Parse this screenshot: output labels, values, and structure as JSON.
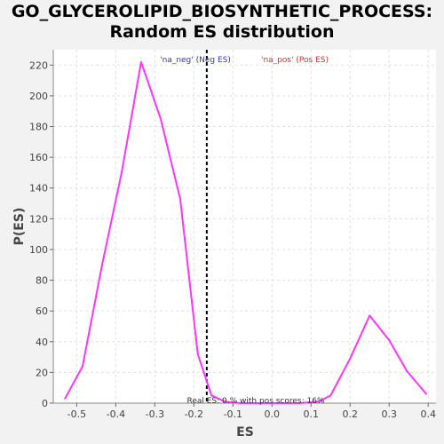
{
  "title_line1": "GO_GLYCEROLIPID_BIOSYNTHETIC_PROCESS:",
  "title_line2": "Random ES distribution",
  "colors": {
    "curve": "#ff33ff",
    "threshold": "#000000",
    "neg_legend": "#3333cc",
    "pos_legend": "#cc3333",
    "plot_bg": "#ffffff",
    "grid": "#e0e0e0"
  },
  "chart_data": {
    "type": "line",
    "title": "GO_GLYCEROLIPID_BIOSYNTHETIC_PROCESS: Random ES distribution",
    "xlabel": "ES",
    "ylabel": "P(ES)",
    "xlim": [
      -0.56,
      0.42
    ],
    "ylim": [
      0,
      230
    ],
    "grid": true,
    "xticks": [
      -0.5,
      -0.4,
      -0.3,
      -0.2,
      -0.1,
      0.0,
      0.1,
      0.2,
      0.3,
      0.4
    ],
    "xtick_labels": [
      "-0.5",
      "-0.4",
      "-0.3",
      "-0.2",
      "-0.1",
      "0.0",
      "0.1",
      "0.2",
      "0.3",
      "0.4"
    ],
    "yticks": [
      0,
      20,
      40,
      60,
      80,
      100,
      120,
      140,
      160,
      180,
      200,
      220
    ],
    "ytick_labels": [
      "0",
      "20",
      "40",
      "60",
      "80",
      "100",
      "120",
      "140",
      "160",
      "180",
      "200",
      "220"
    ],
    "series": [
      {
        "x": [
          -0.53,
          -0.485,
          -0.435,
          -0.385,
          -0.335,
          -0.285,
          -0.235,
          -0.19,
          -0.155,
          -0.12,
          -0.08,
          -0.03,
          0.02,
          0.07,
          0.12,
          0.15,
          0.2,
          0.25,
          0.3,
          0.345,
          0.395
        ],
        "y": [
          3,
          24,
          90,
          150,
          222,
          185,
          133,
          32,
          5,
          1,
          0,
          0,
          0,
          0,
          1,
          5,
          29,
          57,
          41,
          21,
          6
        ]
      }
    ],
    "threshold_x": -0.167,
    "legend": {
      "neg": "'na_neg' (Neg ES)",
      "pos": "'na_pos' (Pos ES)",
      "placement": "top"
    },
    "annotation": "Real ES: 0.%  with pos scores: 16%"
  }
}
